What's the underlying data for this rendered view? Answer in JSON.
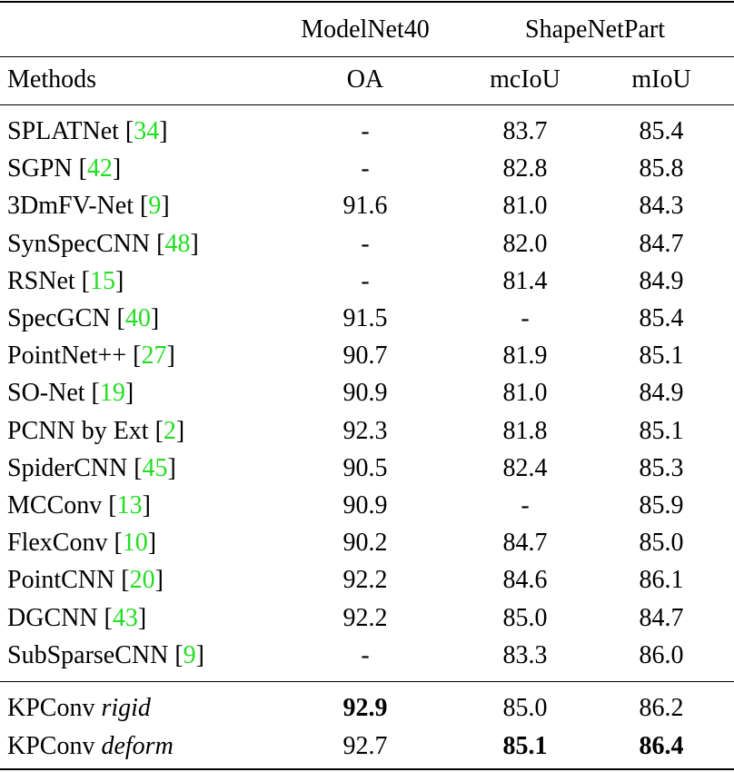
{
  "table": {
    "header": {
      "groups": [
        "ModelNet40",
        "ShapeNetPart"
      ],
      "columns": [
        "Methods",
        "OA",
        "mcIoU",
        "mIoU"
      ]
    },
    "cite_color": "#22dd22",
    "rows": [
      [
        "SPLATNet [34]",
        "-",
        "83.7",
        "85.4"
      ],
      [
        "SGPN [42]",
        "-",
        "82.8",
        "85.8"
      ],
      [
        "3DmFV-Net [9]",
        "91.6",
        "81.0",
        "84.3"
      ],
      [
        "SynSpecCNN [48]",
        "-",
        "82.0",
        "84.7"
      ],
      [
        "RSNet [15]",
        "-",
        "81.4",
        "84.9"
      ],
      [
        "SpecGCN [40]",
        "91.5",
        "-",
        "85.4"
      ],
      [
        "PointNet++ [27]",
        "90.7",
        "81.9",
        "85.1"
      ],
      [
        "SO-Net [19]",
        "90.9",
        "81.0",
        "84.9"
      ],
      [
        "PCNN by Ext [2]",
        "92.3",
        "81.8",
        "85.1"
      ],
      [
        "SpiderCNN [45]",
        "90.5",
        "82.4",
        "85.3"
      ],
      [
        "MCConv [13]",
        "90.9",
        "-",
        "85.9"
      ],
      [
        "FlexConv [10]",
        "90.2",
        "84.7",
        "85.0"
      ],
      [
        "PointCNN [20]",
        "92.2",
        "84.6",
        "86.1"
      ],
      [
        "DGCNN [43]",
        "92.2",
        "85.0",
        "84.7"
      ],
      [
        "SubSparseCNN [9]",
        "-",
        "83.3",
        "86.0"
      ]
    ],
    "ours": [
      {
        "method": "KPConv",
        "variant": "rigid",
        "cells": [
          "92.9",
          "85.0",
          "86.2"
        ],
        "bold": [
          true,
          false,
          false
        ]
      },
      {
        "method": "KPConv",
        "variant": "deform",
        "cells": [
          "92.7",
          "85.1",
          "86.4"
        ],
        "bold": [
          false,
          true,
          true
        ]
      }
    ]
  }
}
